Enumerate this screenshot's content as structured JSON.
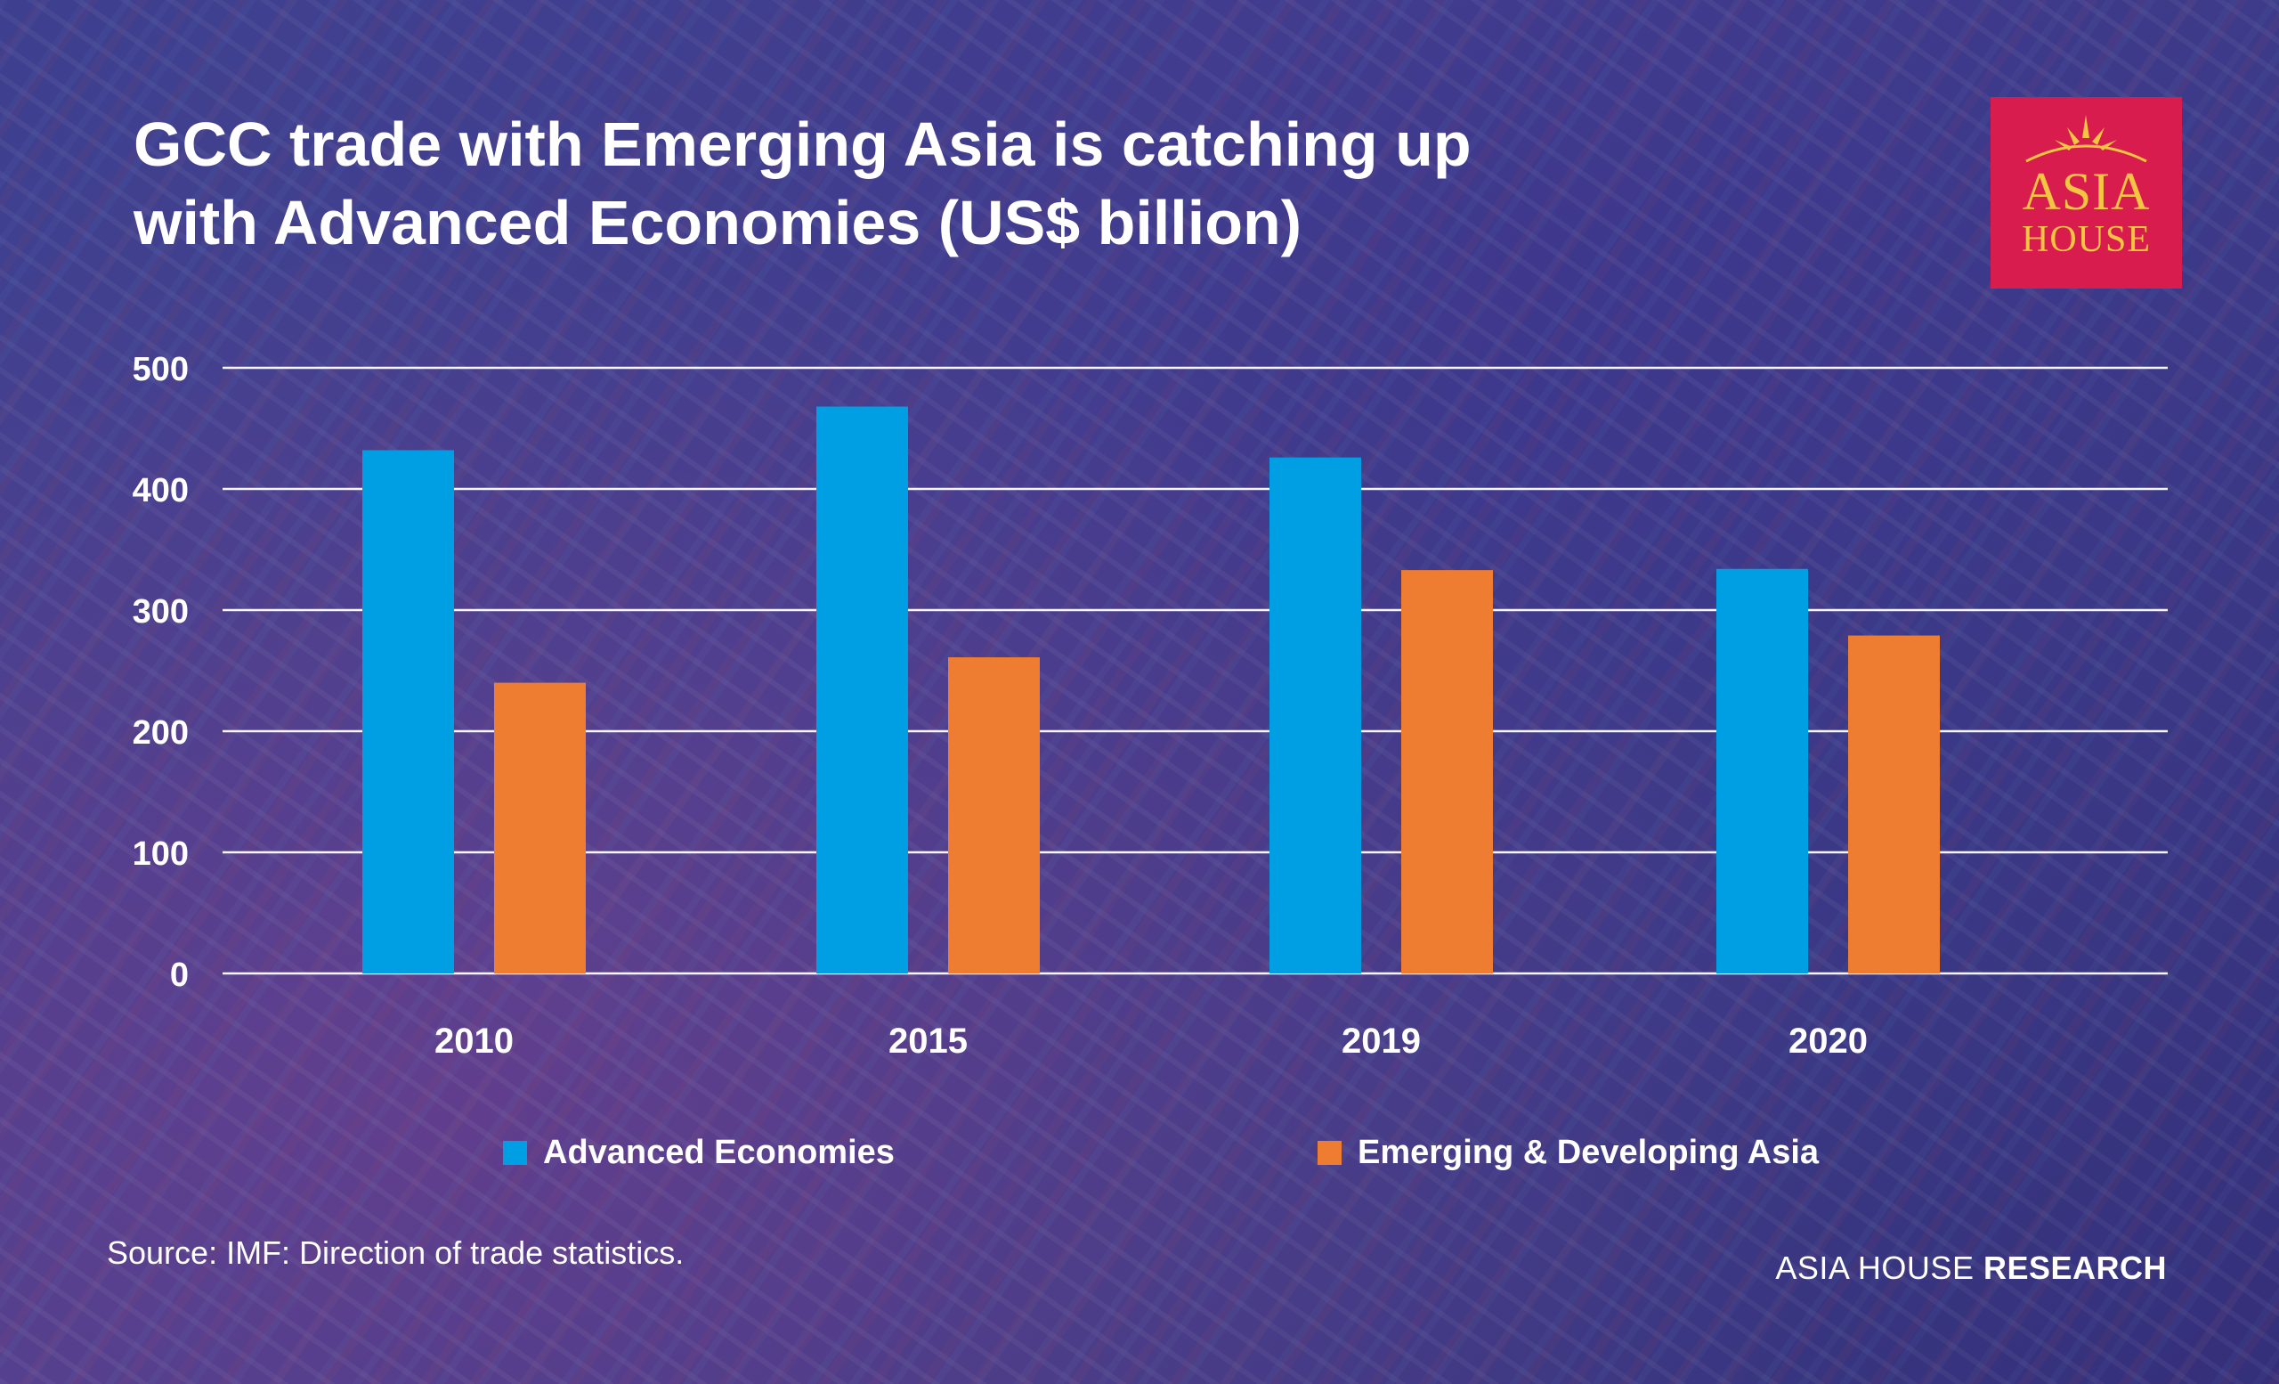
{
  "title_line1": "GCC trade with Emerging Asia is catching up",
  "title_line2": "with Advanced Economies (US$ billion)",
  "logo": {
    "word1": "ASIA",
    "word2": "HOUSE"
  },
  "source": "Source: IMF: Direction of trade statistics.",
  "brand": {
    "light": "ASIA HOUSE",
    "bold": "RESEARCH"
  },
  "colors": {
    "series1": "#009fe3",
    "series2": "#ee7d31",
    "gold": "#f4c542",
    "logo_bg": "#d81c4d"
  },
  "chart_data": {
    "type": "bar",
    "categories": [
      "2010",
      "2015",
      "2019",
      "2020"
    ],
    "series": [
      {
        "name": "Advanced Economies",
        "values": [
          432,
          468,
          426,
          334
        ]
      },
      {
        "name": "Emerging & Developing Asia",
        "values": [
          240,
          261,
          333,
          279
        ]
      }
    ],
    "ylim": [
      0,
      500
    ],
    "yticks": [
      0,
      100,
      200,
      300,
      400,
      500
    ],
    "grid": true,
    "legend": "bottom"
  }
}
